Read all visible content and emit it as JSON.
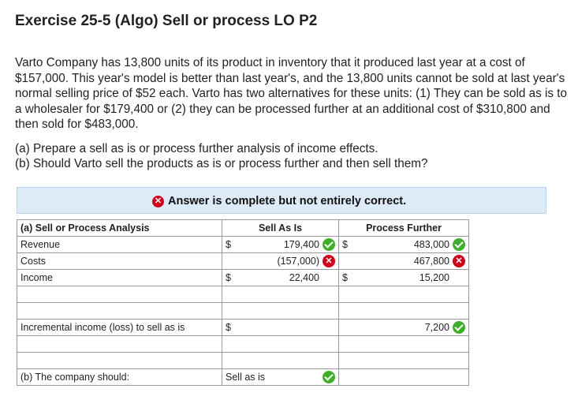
{
  "title": "Exercise 25-5 (Algo) Sell or process LO P2",
  "paragraph": "Varto Company has 13,800 units of its product in inventory that it produced last year at a cost of $157,000. This year's model is better than last year's, and the 13,800 units cannot be sold at last year's normal selling price of $52 each. Varto has two alternatives for these units: (1) They can be sold as is to a wholesaler for $179,400 or (2) they can be processed further at an additional cost of $310,800 and then sold for $483,000.",
  "question_a": "(a) Prepare a sell as is or process further analysis of income effects.",
  "question_b": "(b) Should Varto sell the products as is or process further and then sell them?",
  "banner": "Answer is complete but not entirely correct.",
  "table": {
    "header": {
      "label": "(a) Sell or Process Analysis",
      "col1": "Sell As Is",
      "col2": "Process Further"
    },
    "rows": [
      {
        "label": "Revenue",
        "sa_dollar": "$",
        "sa_value": "179,400",
        "sa_status": "correct",
        "pf_dollar": "$",
        "pf_value": "483,000",
        "pf_status": "correct"
      },
      {
        "label": "Costs",
        "sa_dollar": "",
        "sa_value": "(157,000)",
        "sa_status": "incorrect",
        "pf_dollar": "",
        "pf_value": "467,800",
        "pf_status": "incorrect"
      },
      {
        "label": "Income",
        "sa_dollar": "$",
        "sa_value": "22,400",
        "sa_status": "",
        "pf_dollar": "$",
        "pf_value": "15,200",
        "pf_status": ""
      }
    ],
    "incremental": {
      "label": "Incremental income (loss) to sell as is",
      "dollar": "$",
      "value": "7,200",
      "status": "correct"
    },
    "decision": {
      "label": "(b) The company should:",
      "value": "Sell as is",
      "status": "correct"
    }
  },
  "colors": {
    "correct": "#3fae2a",
    "incorrect": "#d0021b",
    "banner_bg": "#dcebf7"
  }
}
